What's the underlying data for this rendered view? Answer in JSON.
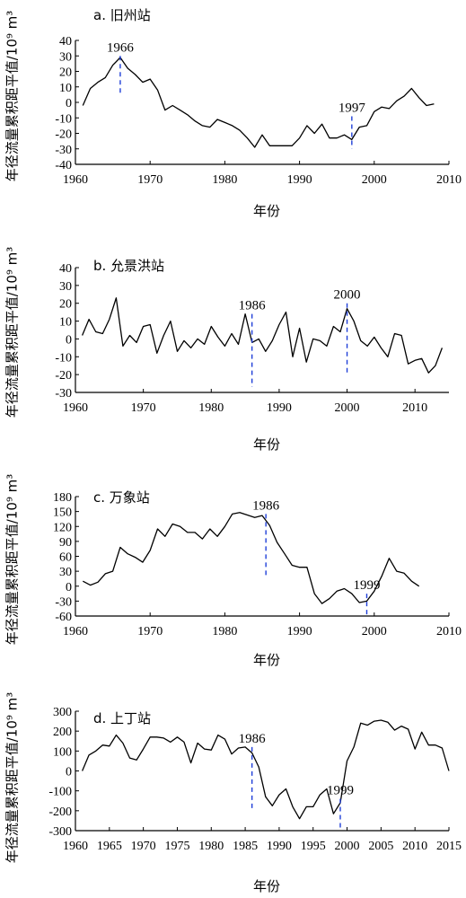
{
  "chart_data": [
    {
      "type": "line",
      "title": "a. 旧州站",
      "xlabel": "年份",
      "ylabel": "年径流量累积距平值/10⁹ m³",
      "xlim": [
        1960,
        2010
      ],
      "ylim": [
        -40,
        40
      ],
      "xticks": [
        "1960",
        "1970",
        "1980",
        "1990",
        "2000",
        "2010"
      ],
      "yticks": [
        "40",
        "30",
        "20",
        "10",
        "0",
        "-10",
        "-20",
        "-30",
        "-40"
      ],
      "x": [
        1961,
        1962,
        1963,
        1964,
        1965,
        1966,
        1967,
        1968,
        1969,
        1970,
        1971,
        1972,
        1973,
        1974,
        1975,
        1976,
        1977,
        1978,
        1979,
        1980,
        1981,
        1982,
        1983,
        1984,
        1985,
        1986,
        1987,
        1988,
        1989,
        1990,
        1991,
        1992,
        1993,
        1994,
        1995,
        1996,
        1997,
        1998,
        1999,
        2000,
        2001,
        2002,
        2003,
        2004,
        2005,
        2006,
        2007,
        2008
      ],
      "y": [
        -2,
        9,
        13,
        16,
        24,
        29,
        22,
        18,
        13,
        15,
        8,
        -5,
        -2,
        -5,
        -8,
        -12,
        -15,
        -16,
        -11,
        -13,
        -15,
        -18,
        -23,
        -29,
        -21,
        -28,
        -28,
        -28,
        -28,
        -23,
        -15,
        -20,
        -14,
        -23,
        -23,
        -21,
        -24,
        -16,
        -15,
        -6,
        -3,
        -4,
        1,
        4,
        9,
        3,
        -2,
        -1
      ],
      "annotations": [
        {
          "label": "1966",
          "x": 1966,
          "y_from": 30,
          "y_to": 6
        },
        {
          "label": "1997",
          "x": 1997,
          "y_from": -9,
          "y_to": -30
        }
      ]
    },
    {
      "type": "line",
      "title": "b. 允景洪站",
      "xlabel": "年份",
      "ylabel": "年径流量累积距平值/10⁹ m³",
      "xlim": [
        1960,
        2015
      ],
      "ylim": [
        -30,
        40
      ],
      "xticks": [
        "1960",
        "1970",
        "1980",
        "1990",
        "2000",
        "2010"
      ],
      "yticks": [
        "40",
        "30",
        "20",
        "10",
        "0",
        "-10",
        "-20",
        "-30"
      ],
      "x": [
        1961,
        1962,
        1963,
        1964,
        1965,
        1966,
        1967,
        1968,
        1969,
        1970,
        1971,
        1972,
        1973,
        1974,
        1975,
        1976,
        1977,
        1978,
        1979,
        1980,
        1981,
        1982,
        1983,
        1984,
        1985,
        1986,
        1987,
        1988,
        1989,
        1990,
        1991,
        1992,
        1993,
        1994,
        1995,
        1996,
        1997,
        1998,
        1999,
        2000,
        2001,
        2002,
        2003,
        2004,
        2005,
        2006,
        2007,
        2008,
        2009,
        2010,
        2011,
        2012,
        2013,
        2014
      ],
      "y": [
        2,
        11,
        4,
        3,
        11,
        23,
        -4,
        2,
        -2,
        7,
        8,
        -8,
        2,
        10,
        -7,
        -1,
        -5,
        0,
        -3,
        7,
        1,
        -4,
        3,
        -3,
        14,
        -2,
        0,
        -7,
        -1,
        8,
        15,
        -10,
        6,
        -13,
        0,
        -1,
        -4,
        7,
        4,
        17,
        10,
        -1,
        -4,
        1,
        -5,
        -10,
        3,
        2,
        -14,
        -12,
        -11,
        -19,
        -15,
        -5
      ],
      "annotations": [
        {
          "label": "1986",
          "x": 1986,
          "y_from": 14,
          "y_to": -27
        },
        {
          "label": "2000",
          "x": 2000,
          "y_from": 20,
          "y_to": -20
        }
      ]
    },
    {
      "type": "line",
      "title": "c. 万象站",
      "xlabel": "年份",
      "ylabel": "年径流量累积距平值/10⁹ m³",
      "xlim": [
        1960,
        2010
      ],
      "ylim": [
        -60,
        180
      ],
      "xticks": [
        "1960",
        "1970",
        "1980",
        "1990",
        "2000",
        "2010"
      ],
      "yticks": [
        "180",
        "150",
        "120",
        "90",
        "60",
        "30",
        "0",
        "-30",
        "-60"
      ],
      "x": [
        1961,
        1962,
        1963,
        1964,
        1965,
        1966,
        1967,
        1968,
        1969,
        1970,
        1971,
        1972,
        1973,
        1974,
        1975,
        1976,
        1977,
        1978,
        1979,
        1980,
        1981,
        1982,
        1983,
        1984,
        1985,
        1986,
        1987,
        1988,
        1989,
        1990,
        1991,
        1992,
        1993,
        1994,
        1995,
        1996,
        1997,
        1998,
        1999,
        2000,
        2001,
        2002,
        2003,
        2004,
        2005,
        2006
      ],
      "y": [
        10,
        2,
        8,
        25,
        30,
        78,
        65,
        58,
        48,
        72,
        115,
        100,
        125,
        120,
        108,
        108,
        95,
        115,
        100,
        120,
        145,
        148,
        143,
        138,
        142,
        122,
        88,
        65,
        42,
        38,
        38,
        -15,
        -35,
        -25,
        -10,
        -5,
        -15,
        -33,
        -30,
        -10,
        20,
        56,
        30,
        26,
        10,
        0
      ],
      "annotations": [
        {
          "label": "1986",
          "x": 1985.5,
          "y_from": 145,
          "y_to": 20
        },
        {
          "label": "1999",
          "x": 1999,
          "y_from": -15,
          "y_to": -60
        }
      ]
    },
    {
      "type": "line",
      "title": "d. 上丁站",
      "xlabel": "年份",
      "ylabel": "年径流量累积距平值/10⁹ m³",
      "xlim": [
        1960,
        2015
      ],
      "ylim": [
        -300,
        300
      ],
      "xticks": [
        "1960",
        "1965",
        "1970",
        "1975",
        "1980",
        "1985",
        "1990",
        "1995",
        "2000",
        "2005",
        "2010",
        "2015"
      ],
      "yticks": [
        "300",
        "200",
        "100",
        "0",
        "-100",
        "-200",
        "-300"
      ],
      "x": [
        1961,
        1962,
        1963,
        1964,
        1965,
        1966,
        1967,
        1968,
        1969,
        1970,
        1971,
        1972,
        1973,
        1974,
        1975,
        1976,
        1977,
        1978,
        1979,
        1980,
        1981,
        1982,
        1983,
        1984,
        1985,
        1986,
        1987,
        1988,
        1989,
        1990,
        1991,
        1992,
        1993,
        1994,
        1995,
        1996,
        1997,
        1998,
        1999,
        2000,
        2001,
        2002,
        2003,
        2004,
        2005,
        2006,
        2007,
        2008,
        2009,
        2010,
        2011,
        2012,
        2013,
        2014,
        2015
      ],
      "y": [
        0,
        80,
        100,
        130,
        125,
        180,
        140,
        65,
        55,
        110,
        170,
        170,
        165,
        145,
        170,
        145,
        40,
        140,
        110,
        105,
        180,
        160,
        85,
        115,
        120,
        90,
        20,
        -130,
        -175,
        -120,
        -90,
        -180,
        -240,
        -180,
        -180,
        -120,
        -90,
        -215,
        -160,
        50,
        120,
        240,
        230,
        250,
        255,
        245,
        205,
        225,
        210,
        110,
        195,
        130,
        130,
        115,
        0
      ],
      "annotations": [
        {
          "label": "1986",
          "x": 1986,
          "y_from": 120,
          "y_to": -200
        },
        {
          "label": "1999",
          "x": 1999,
          "y_from": -140,
          "y_to": -300
        }
      ]
    }
  ]
}
